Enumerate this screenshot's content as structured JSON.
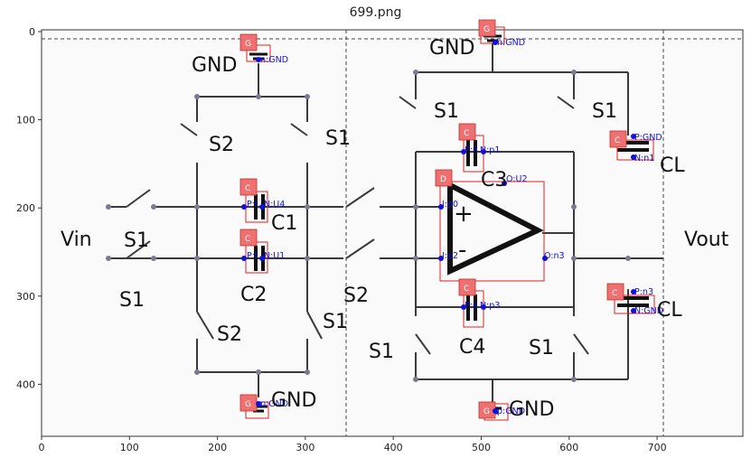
{
  "title": "699.png",
  "axes": {
    "x_ticks": [
      "0",
      "100",
      "200",
      "300",
      "400",
      "500",
      "600",
      "700"
    ],
    "y_ticks": [
      "0",
      "100",
      "200",
      "300",
      "400"
    ]
  },
  "labels": {
    "vin": "Vin",
    "vout": "Vout",
    "gnd_top_left": "GND",
    "gnd_top_right": "GND",
    "gnd_bottom_left": "GND",
    "gnd_bottom_right": "GND",
    "s2_upper_left": "S2",
    "s1_upper_left": "S1",
    "s1_input": "S1",
    "s1_lower_left": "S1",
    "s2_lower_left": "S2",
    "s1_lower_mid": "S1",
    "s2_mid": "S2",
    "s1_upper_right_a": "S1",
    "s1_upper_right_b": "S1",
    "s1_lower_right_a": "S1",
    "s1_lower_right_b": "S1",
    "c1": "C1",
    "c2": "C2",
    "c3": "C3",
    "c4": "C4",
    "cl_top": "CL",
    "cl_bottom": "CL",
    "plus": "+",
    "minus": "-"
  },
  "boxes": {
    "g1": "G",
    "g2": "G",
    "g3": "G",
    "g4": "G",
    "c_c1": "C",
    "c_c2": "C",
    "c_c3": "C",
    "c_c4": "C",
    "c_cl1": "C",
    "c_cl2": "C",
    "d_opamp": "D"
  },
  "pins": {
    "g1_n": "n:GND",
    "g2_n": "n:GND",
    "g3_n": "p:GND",
    "g4_n": "p:GND",
    "c1_p": "P:I",
    "c1_n": "N:U4",
    "c2_p": "P:I",
    "c2_n": "N:U1",
    "c3_p": "P:n",
    "c3_n": "N:p1",
    "c4_p": "P:n",
    "c4_n": "N:p3",
    "cl1_p": "P:GND",
    "cl1_n": "N:n1",
    "cl2_p": "P:n3",
    "cl2_n": "N:GND",
    "op_out_top": "O:U2",
    "op_in_plus": "I:p0",
    "op_in_minus": "I:p2",
    "op_out": "O:n3"
  }
}
